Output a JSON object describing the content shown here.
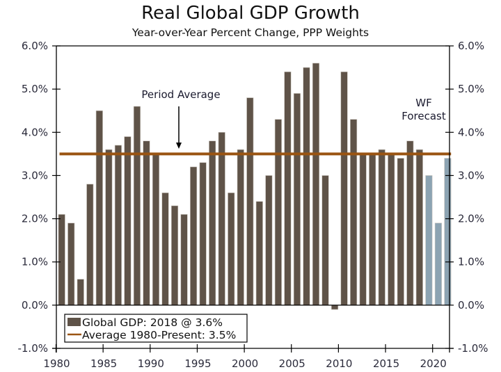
{
  "chart_data": {
    "type": "bar",
    "title": "Real Global GDP Growth",
    "subtitle": "Year-over-Year Percent Change, PPP Weights",
    "xlabel": "",
    "ylabel": "",
    "ylim": [
      -1.0,
      6.0
    ],
    "xlim": [
      1980,
      2022
    ],
    "y_ticks": [
      "-1.0%",
      "0.0%",
      "1.0%",
      "2.0%",
      "3.0%",
      "4.0%",
      "5.0%",
      "6.0%"
    ],
    "y_tick_values": [
      -1,
      0,
      1,
      2,
      3,
      4,
      5,
      6
    ],
    "x_ticks": [
      "1980",
      "1985",
      "1990",
      "1995",
      "2000",
      "2005",
      "2010",
      "2015",
      "2020"
    ],
    "x_tick_values": [
      1980,
      1985,
      1990,
      1995,
      2000,
      2005,
      2010,
      2015,
      2020
    ],
    "grid": false,
    "secondary_y_axis": true,
    "series": [
      {
        "name": "Global GDP: 2018 @ 3.6%",
        "color": "#5f5348",
        "x": [
          1980,
          1981,
          1982,
          1983,
          1984,
          1985,
          1986,
          1987,
          1988,
          1989,
          1990,
          1991,
          1992,
          1993,
          1994,
          1995,
          1996,
          1997,
          1998,
          1999,
          2000,
          2001,
          2002,
          2003,
          2004,
          2005,
          2006,
          2007,
          2008,
          2009,
          2010,
          2011,
          2012,
          2013,
          2014,
          2015,
          2016,
          2017,
          2018
        ],
        "values": [
          2.1,
          1.9,
          0.6,
          2.8,
          4.5,
          3.6,
          3.7,
          3.9,
          4.6,
          3.8,
          3.5,
          2.6,
          2.3,
          2.1,
          3.2,
          3.3,
          3.8,
          4.0,
          2.6,
          3.6,
          4.8,
          2.4,
          3.0,
          4.3,
          5.4,
          4.9,
          5.5,
          5.6,
          3.0,
          -0.1,
          5.4,
          4.3,
          3.5,
          3.5,
          3.6,
          3.5,
          3.4,
          3.8,
          3.6
        ]
      },
      {
        "name": "WF Forecast",
        "color": "#8ca3b2",
        "x": [
          2019,
          2020,
          2021
        ],
        "values": [
          3.0,
          1.9,
          3.4
        ]
      },
      {
        "name": "Average 1980-Present: 3.5%",
        "type": "line",
        "color": "#9a5412",
        "value": 3.5,
        "x_range": [
          1980,
          2021
        ]
      }
    ],
    "annotations": [
      {
        "text": "Period Average",
        "arrow": "down",
        "x": 1993,
        "target_y": 3.5
      },
      {
        "text_lines": [
          "WF",
          "Forecast"
        ],
        "x": 2018
      }
    ],
    "legend": {
      "placement": "bottom-left",
      "entries": [
        {
          "label": "Global GDP: 2018 @ 3.6%",
          "symbol": "box",
          "color": "#5f5348"
        },
        {
          "label": "Average 1980-Present: 3.5%",
          "symbol": "line",
          "color": "#9a5412"
        }
      ]
    }
  }
}
